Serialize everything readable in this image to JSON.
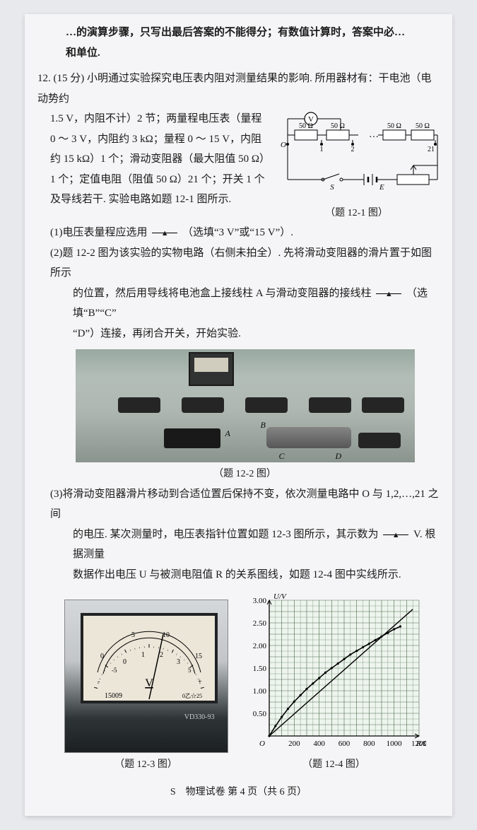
{
  "top_fragment_line1": "…的演算步骤，只写出最后答案的不能得分；有数值计算时，答案中必…",
  "top_fragment_line2": "和单位.",
  "problem_number": "12.",
  "problem_points": "(15 分)",
  "stem1": "小明通过实验探究电压表内阻对测量结果的影响. 所用器材有：干电池（电动势约",
  "stem2": "1.5 V，内阻不计）2 节；两量程电压表（量程 0 ～ 3 V，内阻约 3 kΩ；量程 0 ～ 15 V，内阻约 15 kΩ）1 个；滑动变阻器（最大阻值 50 Ω）1 个；定值电阻（阻值 50 Ω）21 个；开关 1 个及导线若干. 实验电路如题 12-1 图所示.",
  "circuit_caption": "（题 12-1 图）",
  "circuit": {
    "resistor_label": "50 Ω",
    "node_O": "O",
    "nodes": [
      "1",
      "2",
      "21"
    ],
    "dots": "…",
    "switch": "S",
    "emf": "E",
    "voltmeter": "V"
  },
  "q1_pre": "(1)电压表量程应选用",
  "q1_post": "（选填“3 V”或“15 V”）.",
  "q2_line1": "(2)题 12-2 图为该实验的实物电路（右侧未拍全）. 先将滑动变阻器的滑片置于如图所示",
  "q2_line2_pre": "的位置，然后用导线将电池盒上接线柱 A 与滑动变阻器的接线柱",
  "q2_line2_post": "（选填“B”“C”",
  "q2_line3": "“D”）连接，再闭合开关，开始实验.",
  "fig12_2_caption": "（题 12-2 图）",
  "photo_labels": {
    "A": "A",
    "B": "B",
    "C": "C",
    "D": "D"
  },
  "q3_line1": "(3)将滑动变阻器滑片移动到合适位置后保持不变，依次测量电路中 O 与 1,2,…,21 之间",
  "q3_line2_pre": "的电压. 某次测量时，电压表指针位置如题 12-3 图所示，其示数为",
  "q3_line2_unit": "V. 根据测量",
  "q3_line3_pre": "数据作出电压 U 与被测电阻值 R 的关系图线，如题 12-4 图中实线所示.",
  "meter": {
    "upper_ticks": [
      "0",
      "5",
      "10",
      "15"
    ],
    "lower_ticks": [
      "-",
      "0",
      "1",
      "2",
      "3",
      "+"
    ],
    "lower_minor": [
      "-5",
      "5"
    ],
    "V_label": "V",
    "serial": "15009",
    "rating": "0乙☆25",
    "model": "VD330-93"
  },
  "fig12_3_caption": "（题 12-3 图）",
  "graph": {
    "ylabel": "U/V",
    "xlabel": "R/Ω",
    "ylim": [
      0,
      3.0
    ],
    "xlim": [
      0,
      1200
    ],
    "yticks": [
      0.5,
      1.0,
      1.5,
      2.0,
      2.5,
      3.0
    ],
    "xticks": [
      200,
      400,
      600,
      800,
      1000,
      1200
    ],
    "origin": "O",
    "curve_points": [
      [
        0,
        0
      ],
      [
        50,
        0.22
      ],
      [
        100,
        0.42
      ],
      [
        150,
        0.6
      ],
      [
        200,
        0.76
      ],
      [
        250,
        0.9
      ],
      [
        300,
        1.04
      ],
      [
        350,
        1.16
      ],
      [
        400,
        1.28
      ],
      [
        450,
        1.4
      ],
      [
        500,
        1.5
      ],
      [
        550,
        1.6
      ],
      [
        600,
        1.7
      ],
      [
        650,
        1.8
      ],
      [
        700,
        1.88
      ],
      [
        750,
        1.96
      ],
      [
        800,
        2.04
      ],
      [
        850,
        2.12
      ],
      [
        900,
        2.2
      ],
      [
        950,
        2.28
      ],
      [
        1000,
        2.36
      ],
      [
        1050,
        2.42
      ]
    ],
    "straight_line": [
      [
        0,
        0
      ],
      [
        1150,
        2.8
      ]
    ],
    "grid_major_x_step": 100,
    "grid_major_y_step": 0.25,
    "line_color": "#000000",
    "grid_color": "#4a6b4a",
    "bg_color": "#eef4ee",
    "axis_fontsize": 11
  },
  "fig12_4_caption": "（题 12-4 图）",
  "footer": "S　物理试卷 第 4 页（共 6 页）"
}
